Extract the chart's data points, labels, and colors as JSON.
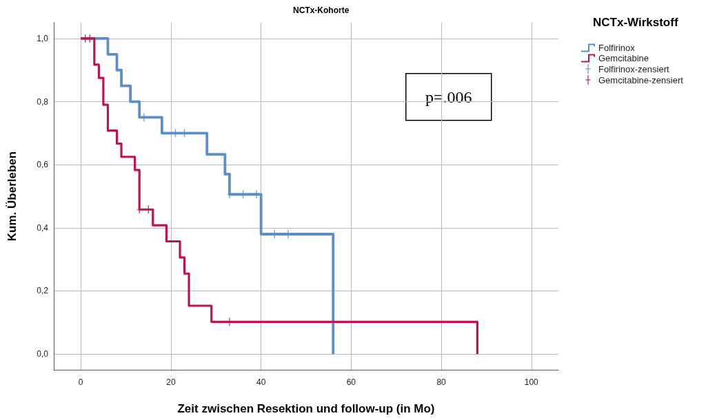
{
  "chart_data": {
    "type": "step",
    "title": "NCTx-Kohorte",
    "xlabel": "Zeit zwischen Resektion und follow-up (in Mo)",
    "ylabel": "Kum. Überleben",
    "legend_title": "NCTx-Wirkstoff",
    "annotations": [
      "p=.006"
    ],
    "xlim": [
      -6,
      106
    ],
    "xticks": [
      0,
      20,
      40,
      60,
      80,
      100
    ],
    "ylim": [
      -0.05,
      1.05
    ],
    "yticks": [
      {
        "value": 0,
        "label": "0,0"
      },
      {
        "value": 0.2,
        "label": "0,2"
      },
      {
        "value": 0.4,
        "label": "0,4"
      },
      {
        "value": 0.6,
        "label": "0,6"
      },
      {
        "value": 0.8,
        "label": "0,8"
      },
      {
        "value": 1,
        "label": "1,0"
      }
    ],
    "grid": true,
    "legend": "right",
    "series": [
      {
        "name": "Folfirinox",
        "color": "#5b8fc9",
        "x": [
          0,
          6,
          8,
          9,
          11,
          13,
          18,
          28,
          32,
          33,
          40,
          56
        ],
        "values": [
          1,
          0.95,
          0.9,
          0.85,
          0.8,
          0.75,
          0.7,
          0.633,
          0.57,
          0.506,
          0.38,
          0
        ]
      },
      {
        "name": "Gemcitabine",
        "color": "#c0144a",
        "x": [
          0,
          3,
          4,
          5,
          6,
          8,
          9,
          12,
          13,
          16,
          19,
          22,
          23,
          24,
          29,
          88
        ],
        "values": [
          1,
          0.917,
          0.875,
          0.79,
          0.708,
          0.667,
          0.625,
          0.583,
          0.458,
          0.408,
          0.357,
          0.306,
          0.255,
          0.153,
          0.102,
          0
        ]
      },
      {
        "name": "Folfirinox-zensiert",
        "type": "scatter",
        "marker": "cross",
        "color": "#5b8fc9",
        "x": [
          14,
          21,
          23,
          33,
          36,
          39,
          43,
          46
        ],
        "values": [
          0.75,
          0.7,
          0.7,
          0.506,
          0.506,
          0.506,
          0.38,
          0.38
        ]
      },
      {
        "name": "Gemcitabine-zensiert",
        "type": "scatter",
        "marker": "cross",
        "color": "#c0144a",
        "x": [
          1,
          2,
          13,
          15,
          33
        ],
        "values": [
          1,
          1,
          0.458,
          0.458,
          0.102
        ]
      }
    ]
  }
}
